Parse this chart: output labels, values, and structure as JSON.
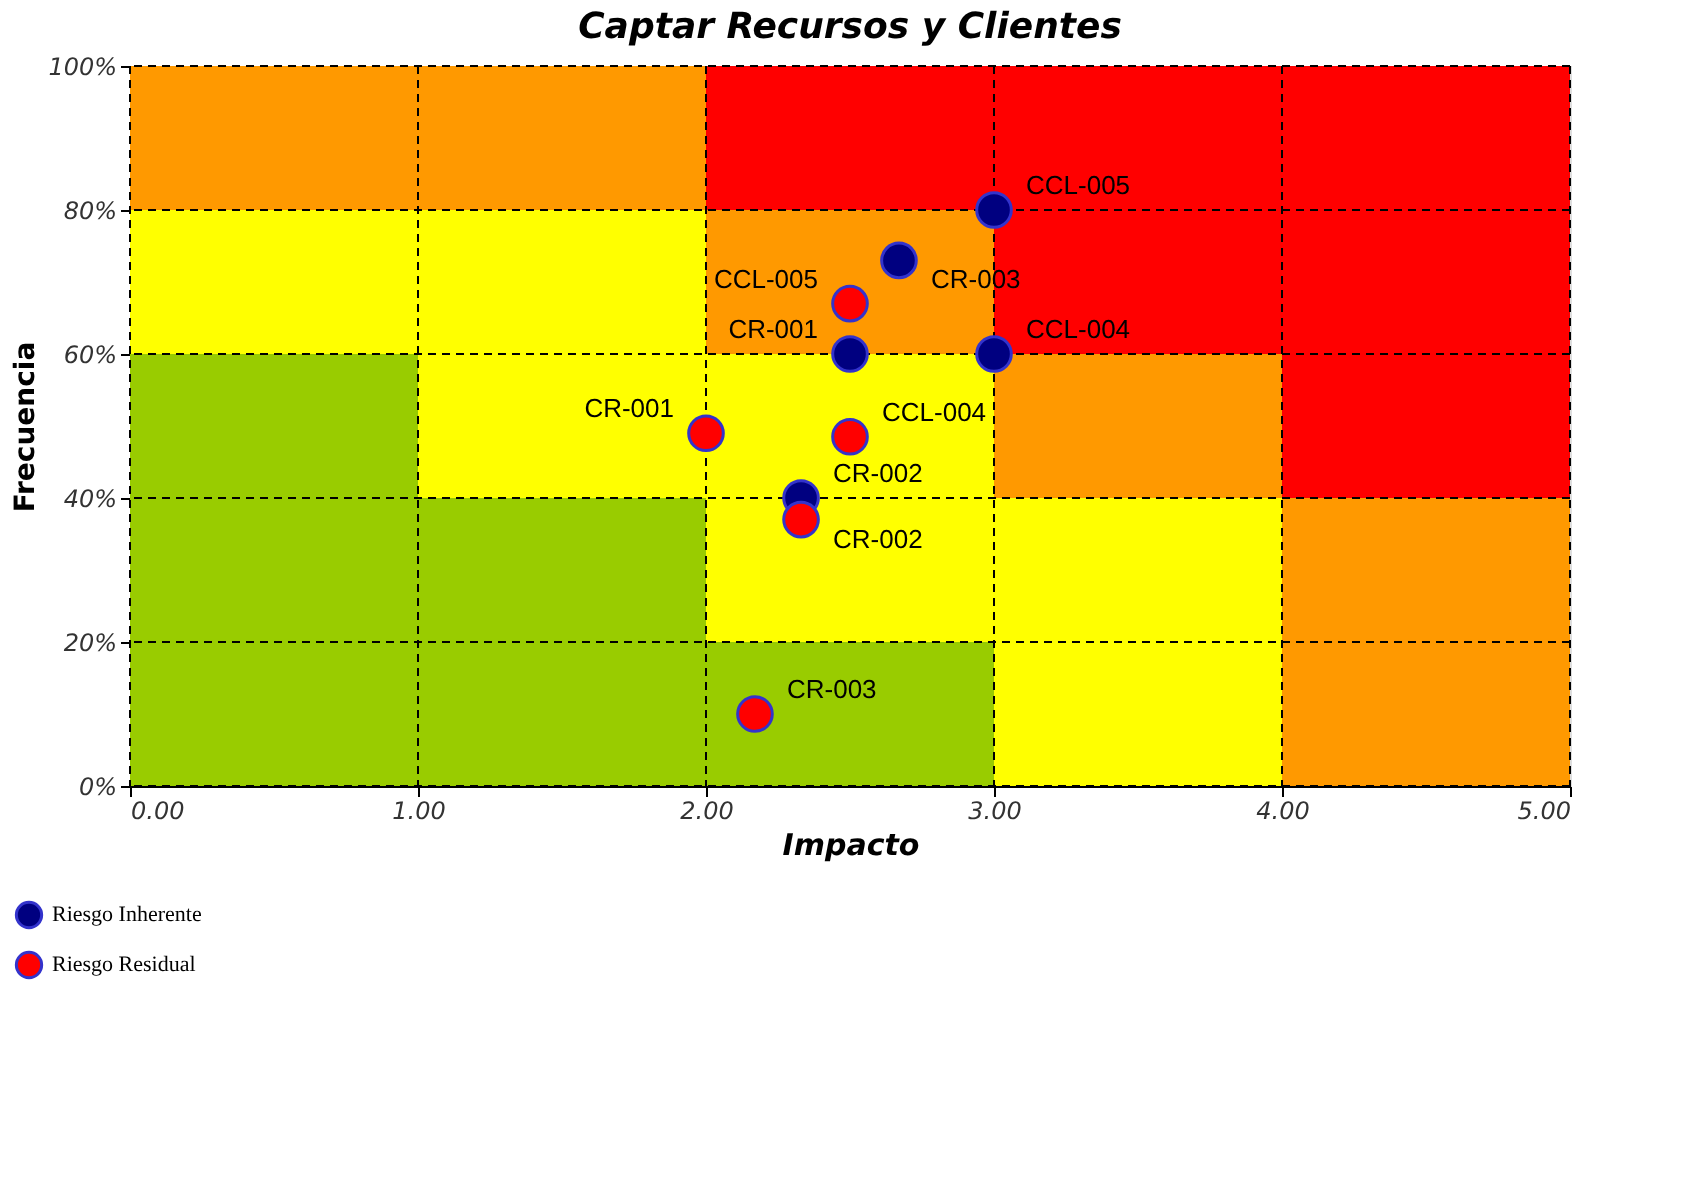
{
  "chart_data": {
    "type": "scatter",
    "title": "Captar  Recursos y Clientes",
    "xlabel": "Impacto",
    "ylabel": "Frecuencia",
    "xlim": [
      0,
      5
    ],
    "xticks": [
      {
        "value": 0,
        "label": "0.00"
      },
      {
        "value": 1,
        "label": "1.00"
      },
      {
        "value": 2,
        "label": "2.00"
      },
      {
        "value": 3,
        "label": "3.00"
      },
      {
        "value": 4,
        "label": "4.00"
      },
      {
        "value": 5,
        "label": "5.00"
      }
    ],
    "ylim": [
      0,
      100
    ],
    "yticks": [
      {
        "value": 0,
        "label": "0%"
      },
      {
        "value": 20,
        "label": "20%"
      },
      {
        "value": 40,
        "label": "40%"
      },
      {
        "value": 60,
        "label": "60%"
      },
      {
        "value": 80,
        "label": "80%"
      },
      {
        "value": 100,
        "label": "100%"
      }
    ],
    "grid": true,
    "marker": "circle",
    "legend": "bottom left",
    "stacked": true,
    "series": [
      {
        "type": "bar",
        "x": [
          0.5,
          1.5,
          2.5,
          3.5,
          4.5
        ],
        "values": [
          20,
          20,
          20,
          20,
          20
        ],
        "colors": [
          "#99cc00",
          "#99cc00",
          "#99cc00",
          "#ffff00",
          "#ff9900"
        ]
      },
      {
        "type": "bar",
        "x": [
          0.5,
          1.5,
          2.5,
          3.5,
          4.5
        ],
        "values": [
          20,
          20,
          20,
          20,
          20
        ],
        "colors": [
          "#99cc00",
          "#99cc00",
          "#ffff00",
          "#ffff00",
          "#ff9900"
        ]
      },
      {
        "type": "bar",
        "x": [
          0.5,
          1.5,
          2.5,
          3.5,
          4.5
        ],
        "values": [
          20,
          20,
          20,
          20,
          20
        ],
        "colors": [
          "#99cc00",
          "#ffff00",
          "#ffff00",
          "#ff9900",
          "#ff0000"
        ]
      },
      {
        "type": "bar",
        "x": [
          0.5,
          1.5,
          2.5,
          3.5,
          4.5
        ],
        "values": [
          20,
          20,
          20,
          20,
          20
        ],
        "colors": [
          "#ffff00",
          "#ffff00",
          "#ff9900",
          "#ff0000",
          "#ff0000"
        ]
      },
      {
        "type": "bar",
        "x": [
          0.5,
          1.5,
          2.5,
          3.5,
          4.5
        ],
        "values": [
          20,
          20,
          20,
          20,
          20
        ],
        "colors": [
          "#ff9900",
          "#ff9900",
          "#ff0000",
          "#ff0000",
          "#ff0000"
        ]
      },
      {
        "name": "Riesgo Inherente",
        "color": "#000080",
        "x": [
          3.0,
          2.67,
          2.5,
          3.0,
          2.33
        ],
        "values": [
          80,
          73,
          60,
          60,
          40
        ]
      },
      {
        "name": "Riesgo Residual",
        "color": "#ff0000",
        "x": [
          2.5,
          2.0,
          2.5,
          2.33,
          2.17
        ],
        "values": [
          67,
          49,
          48.5,
          37,
          10
        ]
      }
    ],
    "annotations": [
      {
        "text": "CCL-005",
        "x": 3.0,
        "y": 80
      },
      {
        "text": "CR-003",
        "x": 2.67,
        "y": 73
      },
      {
        "text": "CR-001",
        "x": 2.5,
        "y": 60
      },
      {
        "text": "CCL-004",
        "x": 3.0,
        "y": 60
      },
      {
        "text": "CR-002",
        "x": 2.33,
        "y": 40
      },
      {
        "text": "CCL-005",
        "x": 2.5,
        "y": 67
      },
      {
        "text": "CR-001",
        "x": 2.0,
        "y": 49
      },
      {
        "text": "CCL-004",
        "x": 2.5,
        "y": 48.5
      },
      {
        "text": "CR-002",
        "x": 2.33,
        "y": 37
      },
      {
        "text": "CR-003",
        "x": 2.17,
        "y": 10
      }
    ]
  }
}
